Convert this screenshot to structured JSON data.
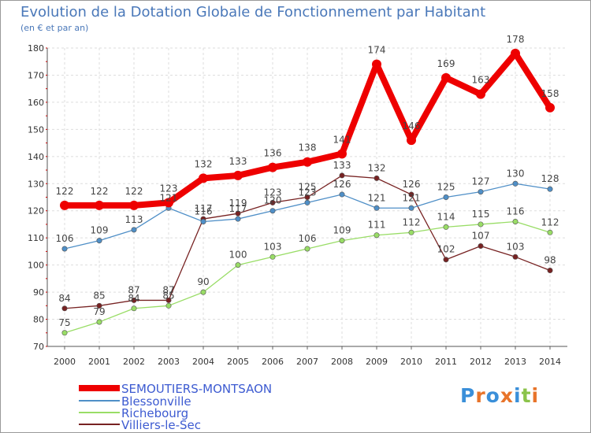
{
  "title": "Evolution de la Dotation Globale de Fonctionnement par Habitant",
  "subtitle": "(en € et par an)",
  "chart_data": {
    "type": "line",
    "title": "Evolution de la Dotation Globale de Fonctionnement par Habitant",
    "subtitle": "(en € et par an)",
    "xlabel": "",
    "ylabel": "",
    "x": [
      "2000",
      "2001",
      "2002",
      "2003",
      "2004",
      "2005",
      "2006",
      "2007",
      "2008",
      "2009",
      "2010",
      "2011",
      "2012",
      "2013",
      "2014"
    ],
    "ylim": [
      70,
      180
    ],
    "yticks": [
      70,
      80,
      90,
      100,
      110,
      120,
      130,
      140,
      150,
      160,
      170,
      180
    ],
    "grid": true,
    "legend": "bottom-left",
    "series": [
      {
        "name": "SEMOUTIERS-MONTSAON",
        "color": "#ee0000",
        "values": [
          122,
          122,
          122,
          123,
          132,
          133,
          136,
          138,
          141,
          174,
          146,
          169,
          163,
          178,
          158
        ]
      },
      {
        "name": "Blessonville",
        "color": "#4f8fc7",
        "values": [
          106,
          109,
          113,
          121,
          116,
          117,
          120,
          123,
          126,
          121,
          121,
          125,
          127,
          130,
          128
        ]
      },
      {
        "name": "Richebourg",
        "color": "#99dd66",
        "values": [
          75,
          79,
          84,
          85,
          90,
          100,
          103,
          106,
          109,
          111,
          112,
          114,
          115,
          116,
          112
        ]
      },
      {
        "name": "Villiers-le-Sec",
        "color": "#772222",
        "values": [
          84,
          85,
          87,
          87,
          117,
          119,
          123,
          125,
          133,
          132,
          126,
          102,
          107,
          103,
          98
        ]
      }
    ]
  },
  "logo": {
    "letters": [
      "P",
      "r",
      "o",
      "x",
      "i",
      "t",
      "i"
    ],
    "colors": [
      "#3a8fd9",
      "#e8742a",
      "#3a8fd9",
      "#e8742a",
      "#3a8fd9",
      "#8bc34a",
      "#e8742a"
    ]
  }
}
